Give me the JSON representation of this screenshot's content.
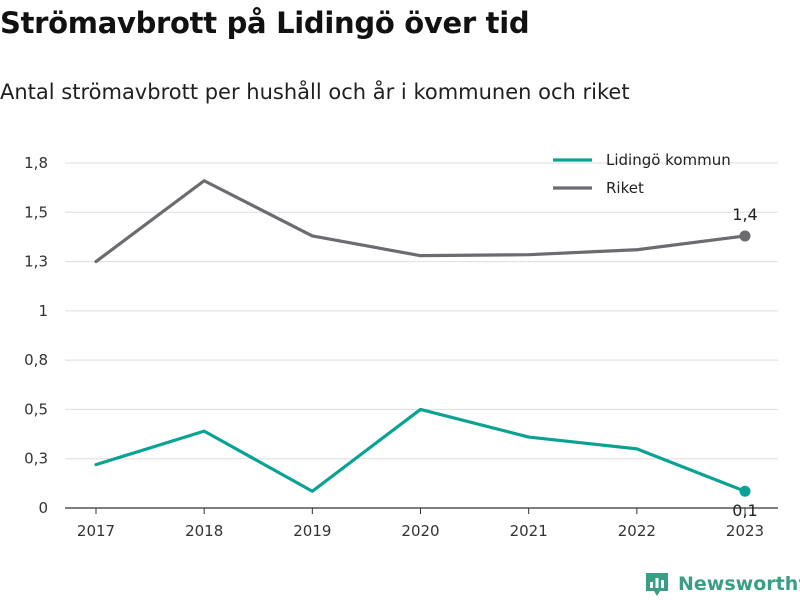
{
  "title": "Strömavbrott på Lidingö över tid",
  "subtitle": "Antal strömavbrott per hushåll och år i kommunen och riket",
  "brand": "Newsworthy",
  "colors": {
    "lidingo": "#0aa393",
    "riket": "#6b6b70",
    "grid": "#dddddd",
    "axis": "#333333",
    "brand": "#3a9e86"
  },
  "chart_data": {
    "type": "line",
    "x": [
      "2017",
      "2018",
      "2019",
      "2020",
      "2021",
      "2022",
      "2023"
    ],
    "y_ticks": [
      0,
      0.25,
      0.5,
      0.75,
      1.0,
      1.25,
      1.5,
      1.75
    ],
    "y_tick_labels": [
      "0",
      "0,3",
      "0,5",
      "0,8",
      "1",
      "1,3",
      "1,5",
      "1,8"
    ],
    "ylim": [
      0,
      1.75
    ],
    "grid": true,
    "legend": "top-right",
    "series": [
      {
        "name": "Lidingö kommun",
        "color": "#0aa393",
        "values": [
          0.22,
          0.39,
          0.085,
          0.5,
          0.36,
          0.3,
          0.085
        ],
        "end_label": "0,1"
      },
      {
        "name": "Riket",
        "color": "#6b6b70",
        "values": [
          1.25,
          1.66,
          1.38,
          1.28,
          1.285,
          1.31,
          1.38
        ],
        "end_label": "1,4"
      }
    ]
  }
}
